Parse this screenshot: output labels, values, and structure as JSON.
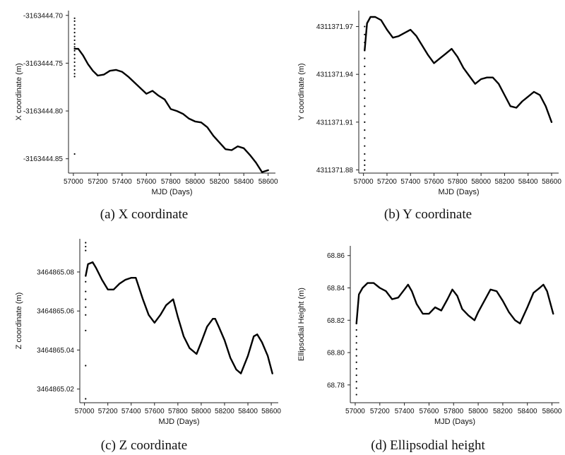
{
  "chart_data": [
    {
      "type": "line",
      "caption": "(a) X coordinate",
      "xlabel": "MJD (Days)",
      "ylabel": "X coordinate (m)",
      "xlim": [
        56960,
        58660
      ],
      "ylim": [
        -3163444.865,
        -3163444.695
      ],
      "xticks": [
        57000,
        57200,
        57400,
        57600,
        57800,
        58000,
        58200,
        58400,
        58600
      ],
      "yticks": [
        -3163444.7,
        -3163444.75,
        -3163444.8,
        -3163444.85
      ],
      "ytick_labels": [
        "-3163444.70",
        "-3163444.75",
        "-3163444.80",
        "-3163444.85"
      ],
      "scatter_x": 57010,
      "scatter_y": [
        -3163444.703,
        -3163444.706,
        -3163444.71,
        -3163444.714,
        -3163444.718,
        -3163444.722,
        -3163444.726,
        -3163444.73,
        -3163444.733,
        -3163444.737,
        -3163444.741,
        -3163444.745,
        -3163444.749,
        -3163444.753,
        -3163444.757,
        -3163444.761,
        -3163444.764,
        -3163444.845
      ],
      "series": [
        {
          "x": [
            57010,
            57040,
            57080,
            57120,
            57160,
            57200,
            57250,
            57300,
            57350,
            57400,
            57450,
            57500,
            57550,
            57600,
            57650,
            57700,
            57750,
            57800,
            57850,
            57900,
            57950,
            58000,
            58050,
            58100,
            58150,
            58200,
            58250,
            58300,
            58350,
            58400,
            58450,
            58500,
            58550,
            58600
          ],
          "y": [
            -3163444.735,
            -3163444.735,
            -3163444.742,
            -3163444.751,
            -3163444.758,
            -3163444.763,
            -3163444.762,
            -3163444.758,
            -3163444.757,
            -3163444.759,
            -3163444.764,
            -3163444.77,
            -3163444.776,
            -3163444.782,
            -3163444.779,
            -3163444.784,
            -3163444.788,
            -3163444.798,
            -3163444.8,
            -3163444.803,
            -3163444.808,
            -3163444.811,
            -3163444.812,
            -3163444.817,
            -3163444.826,
            -3163444.833,
            -3163444.84,
            -3163444.841,
            -3163444.837,
            -3163444.839,
            -3163444.846,
            -3163444.854,
            -3163444.864,
            -3163444.862
          ]
        }
      ]
    },
    {
      "type": "line",
      "caption": "(b) Y coordinate",
      "xlabel": "MJD (Days)",
      "ylabel": "Y coordinate (m)",
      "xlim": [
        56960,
        58660
      ],
      "ylim": [
        4311371.878,
        4311371.98
      ],
      "xticks": [
        57000,
        57200,
        57400,
        57600,
        57800,
        58000,
        58200,
        58400,
        58600
      ],
      "yticks": [
        4311371.88,
        4311371.91,
        4311371.94,
        4311371.97
      ],
      "ytick_labels": [
        "4311371.88",
        "4311371.91",
        "4311371.94",
        "4311371.97"
      ],
      "scatter_x": 57010,
      "scatter_y": [
        4311371.88,
        4311371.883,
        4311371.886,
        4311371.89,
        4311371.895,
        4311371.9,
        4311371.905,
        4311371.91,
        4311371.915,
        4311371.92,
        4311371.925,
        4311371.93,
        4311371.935,
        4311371.94,
        4311371.945,
        4311371.95,
        4311371.955,
        4311371.96,
        4311371.965,
        4311371.97
      ],
      "series": [
        {
          "x": [
            57010,
            57030,
            57060,
            57100,
            57150,
            57200,
            57250,
            57300,
            57350,
            57400,
            57450,
            57500,
            57550,
            57600,
            57650,
            57700,
            57750,
            57800,
            57850,
            57900,
            57950,
            58000,
            58050,
            58100,
            58150,
            58200,
            58250,
            58300,
            58350,
            58400,
            58450,
            58500,
            58550,
            58600
          ],
          "y": [
            4311371.955,
            4311371.972,
            4311371.976,
            4311371.976,
            4311371.974,
            4311371.968,
            4311371.963,
            4311371.964,
            4311371.966,
            4311371.968,
            4311371.964,
            4311371.958,
            4311371.952,
            4311371.947,
            4311371.95,
            4311371.953,
            4311371.956,
            4311371.951,
            4311371.944,
            4311371.939,
            4311371.934,
            4311371.937,
            4311371.938,
            4311371.938,
            4311371.934,
            4311371.927,
            4311371.92,
            4311371.919,
            4311371.923,
            4311371.926,
            4311371.929,
            4311371.927,
            4311371.92,
            4311371.91
          ]
        }
      ]
    },
    {
      "type": "line",
      "caption": "(c) Z coordinate",
      "xlabel": "MJD (Days)",
      "ylabel": "Z coordinate (m)",
      "xlim": [
        56960,
        58660
      ],
      "ylim": [
        3464865.013,
        3464865.097
      ],
      "xticks": [
        57000,
        57200,
        57400,
        57600,
        57800,
        58000,
        58200,
        58400,
        58600
      ],
      "yticks": [
        3464865.02,
        3464865.04,
        3464865.06,
        3464865.08
      ],
      "ytick_labels": [
        "3464865.02",
        "3464865.04",
        "3464865.06",
        "3464865.08"
      ],
      "scatter_x": 57010,
      "scatter_y": [
        3464865.095,
        3464865.093,
        3464865.091,
        3464865.075,
        3464865.07,
        3464865.066,
        3464865.062,
        3464865.058,
        3464865.05,
        3464865.032,
        3464865.015
      ],
      "series": [
        {
          "x": [
            57010,
            57030,
            57070,
            57100,
            57150,
            57200,
            57250,
            57300,
            57350,
            57400,
            57440,
            57500,
            57550,
            57600,
            57650,
            57700,
            57760,
            57800,
            57850,
            57900,
            57960,
            58000,
            58050,
            58100,
            58120,
            58150,
            58200,
            58250,
            58300,
            58340,
            58400,
            58450,
            58480,
            58520,
            58570,
            58610
          ],
          "y": [
            3464865.078,
            3464865.084,
            3464865.085,
            3464865.082,
            3464865.076,
            3464865.071,
            3464865.071,
            3464865.074,
            3464865.076,
            3464865.077,
            3464865.077,
            3464865.066,
            3464865.058,
            3464865.054,
            3464865.058,
            3464865.063,
            3464865.066,
            3464865.057,
            3464865.047,
            3464865.041,
            3464865.038,
            3464865.044,
            3464865.052,
            3464865.056,
            3464865.056,
            3464865.052,
            3464865.045,
            3464865.036,
            3464865.03,
            3464865.028,
            3464865.037,
            3464865.047,
            3464865.048,
            3464865.044,
            3464865.037,
            3464865.028
          ]
        }
      ]
    },
    {
      "type": "line",
      "caption": "(d) Ellipsodial height",
      "xlabel": "MJD (Days)",
      "ylabel": "Ellipsodial Height (m)",
      "xlim": [
        56960,
        58660
      ],
      "ylim": [
        68.769,
        68.866
      ],
      "xticks": [
        57000,
        57200,
        57400,
        57600,
        57800,
        58000,
        58200,
        58400,
        58600
      ],
      "yticks": [
        68.78,
        68.8,
        68.82,
        68.84,
        68.86
      ],
      "ytick_labels": [
        "68.78",
        "68.80",
        "68.82",
        "68.84",
        "68.86"
      ],
      "scatter_x": 57010,
      "scatter_y": [
        68.774,
        68.778,
        68.782,
        68.786,
        68.79,
        68.794,
        68.798,
        68.802,
        68.806,
        68.81,
        68.814,
        68.818
      ],
      "series": [
        {
          "x": [
            57010,
            57030,
            57060,
            57100,
            57150,
            57200,
            57250,
            57300,
            57350,
            57400,
            57430,
            57460,
            57500,
            57550,
            57600,
            57650,
            57700,
            57750,
            57790,
            57830,
            57870,
            57920,
            57970,
            58000,
            58050,
            58100,
            58150,
            58200,
            58250,
            58300,
            58340,
            58400,
            58450,
            58500,
            58530,
            58560,
            58610
          ],
          "y": [
            68.818,
            68.836,
            68.84,
            68.843,
            68.843,
            68.84,
            68.838,
            68.833,
            68.834,
            68.839,
            68.842,
            68.838,
            68.83,
            68.824,
            68.824,
            68.828,
            68.826,
            68.833,
            68.839,
            68.835,
            68.827,
            68.823,
            68.82,
            68.825,
            68.832,
            68.839,
            68.838,
            68.832,
            68.825,
            68.82,
            68.818,
            68.828,
            68.837,
            68.84,
            68.842,
            68.838,
            68.824
          ]
        }
      ]
    }
  ]
}
